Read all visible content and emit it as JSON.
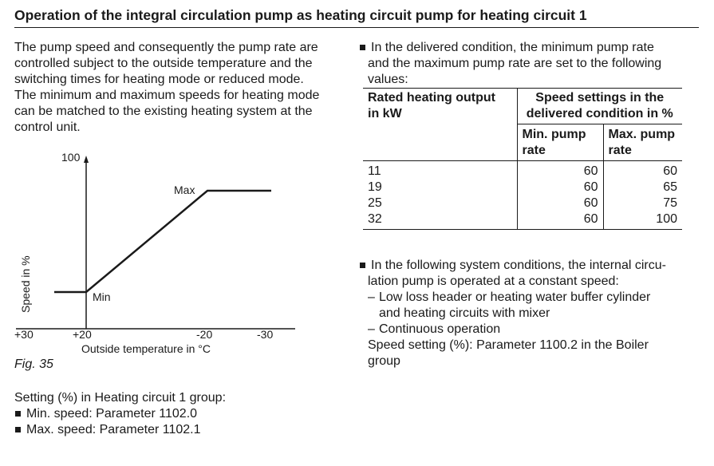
{
  "title": "Operation of the integral circulation pump as heating circuit pump for heating circuit 1",
  "intro": [
    "The pump speed and consequently the pump rate are",
    "controlled subject to the outside temperature and the",
    "switching times for heating mode or reduced mode.",
    "The minimum and maximum speeds for heating mode",
    "can be matched to the existing heating system at the",
    "control unit."
  ],
  "figure": {
    "y_max_label": "100",
    "max_label": "Max",
    "min_label": "Min",
    "ylabel": "Speed in %",
    "x_ticks": [
      "+30",
      "+20",
      "-20",
      "-30"
    ],
    "xlabel": "Outside temperature in °C",
    "caption": "Fig. 35"
  },
  "setting": {
    "intro": "Setting (%) in Heating circuit 1 group:",
    "items": [
      "Min. speed: Parameter 1102.0",
      "Max. speed: Parameter 1102.1"
    ]
  },
  "delivered": [
    "In the delivered condition, the minimum pump rate",
    "and the maximum pump rate are set to the following",
    "values:"
  ],
  "table": {
    "col1_header": [
      "Rated heating output",
      "in kW"
    ],
    "group_header": [
      "Speed settings in the",
      "delivered condition in %"
    ],
    "min_header": [
      "Min. pump",
      "rate"
    ],
    "max_header": [
      "Max. pump",
      "rate"
    ],
    "rows": [
      {
        "kw": "11",
        "min": "60",
        "max": "60"
      },
      {
        "kw": "19",
        "min": "60",
        "max": "65"
      },
      {
        "kw": "25",
        "min": "60",
        "max": "75"
      },
      {
        "kw": "32",
        "min": "60",
        "max": "100"
      }
    ]
  },
  "constant": {
    "lines": [
      "In the following system conditions, the internal circu-",
      "lation pump is operated at a constant speed:"
    ],
    "dash1": [
      "Low loss header or heating water buffer cylinder",
      "and heating circuits with mixer"
    ],
    "dash2": "Continuous operation",
    "speed_setting": [
      "Speed setting (%): Parameter 1100.2 in the Boiler",
      "group"
    ]
  }
}
